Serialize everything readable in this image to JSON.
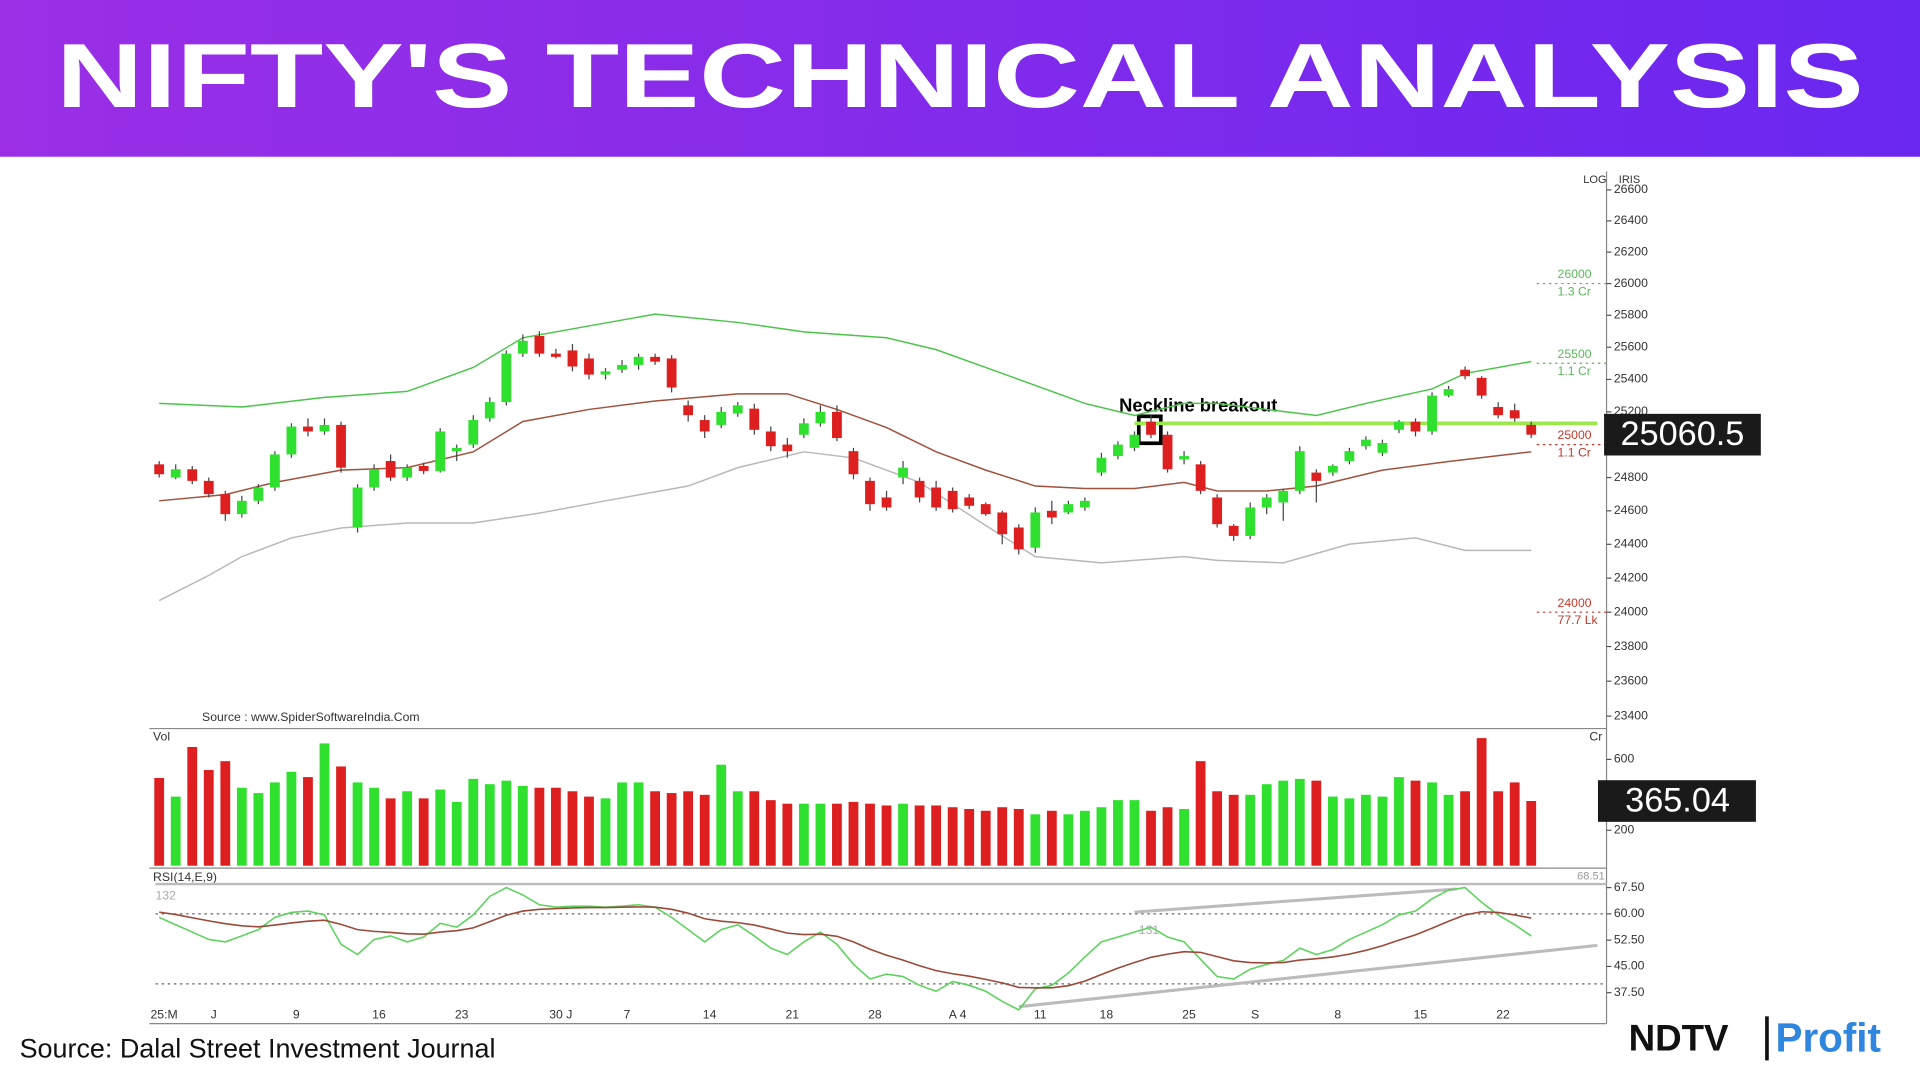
{
  "header": {
    "title": "NIFTY'S TECHNICAL ANALYSIS"
  },
  "footer": {
    "source": "Source: Dalal Street Investment Journal",
    "logo_brand": "NDTV",
    "logo_product": "Profit"
  },
  "chart_data": [
    {
      "type": "candlestick",
      "log": true,
      "scale_labels": [
        "LOG",
        "IRIS"
      ],
      "source_note": "Source : www.SpiderSoftwareIndia.Com",
      "ylim": [
        23350,
        26720
      ],
      "yticks": [
        23400,
        23600,
        23800,
        24000,
        24200,
        24400,
        24600,
        24800,
        25000,
        25200,
        25400,
        25600,
        25800,
        26000,
        26200,
        26400,
        26600
      ],
      "up_color": "#2fe02f",
      "down_color": "#dd1f1f",
      "open": [
        24880,
        24800,
        24850,
        24780,
        24700,
        24580,
        24660,
        24740,
        24940,
        25110,
        25080,
        25120,
        24500,
        24740,
        24900,
        24800,
        24870,
        24840,
        24960,
        25000,
        25160,
        25260,
        25560,
        25670,
        25560,
        25580,
        25530,
        25430,
        25460,
        25490,
        25540,
        25530,
        25240,
        25150,
        25120,
        25190,
        25220,
        25080,
        25000,
        25060,
        25130,
        25200,
        24960,
        24780,
        24680,
        24800,
        24780,
        24740,
        24720,
        24680,
        24640,
        24590,
        24500,
        24380,
        24600,
        24590,
        24620,
        24830,
        24930,
        24980,
        25140,
        25060,
        24910,
        24880,
        24680,
        24510,
        24450,
        24620,
        24650,
        24720,
        24830,
        24830,
        24900,
        24990,
        24950,
        25090,
        25140,
        25080,
        25300,
        25460,
        25410,
        25230,
        25210,
        25120
      ],
      "high": [
        24900,
        24880,
        24870,
        24800,
        24720,
        24690,
        24760,
        24960,
        25130,
        25160,
        25160,
        25140,
        24760,
        24880,
        24940,
        24880,
        24890,
        25100,
        25000,
        25180,
        25290,
        25580,
        25680,
        25700,
        25590,
        25620,
        25560,
        25470,
        25520,
        25560,
        25560,
        25550,
        25270,
        25180,
        25230,
        25260,
        25250,
        25110,
        25040,
        25160,
        25240,
        25240,
        24980,
        24800,
        24720,
        24900,
        24800,
        24780,
        24740,
        24700,
        24650,
        24600,
        24520,
        24620,
        24660,
        24660,
        24680,
        24950,
        25020,
        25080,
        25180,
        25080,
        24960,
        24900,
        24700,
        24520,
        24650,
        24700,
        24730,
        24990,
        24850,
        24880,
        24980,
        25050,
        25030,
        25150,
        25160,
        25320,
        25360,
        25480,
        25420,
        25260,
        25250,
        25140
      ],
      "low": [
        24800,
        24790,
        24760,
        24680,
        24540,
        24560,
        24640,
        24720,
        24920,
        25050,
        25060,
        24830,
        24470,
        24720,
        24780,
        24780,
        24820,
        24830,
        24900,
        24980,
        25140,
        25240,
        25540,
        25540,
        25530,
        25450,
        25400,
        25400,
        25440,
        25460,
        25490,
        25320,
        25140,
        25040,
        25100,
        25170,
        25060,
        24960,
        24920,
        25040,
        25110,
        25020,
        24790,
        24600,
        24600,
        24760,
        24650,
        24600,
        24590,
        24610,
        24570,
        24400,
        24340,
        24350,
        24520,
        24580,
        24600,
        24810,
        24910,
        24960,
        25040,
        24830,
        24880,
        24700,
        24500,
        24420,
        24430,
        24580,
        24540,
        24700,
        24650,
        24810,
        24880,
        24970,
        24930,
        25070,
        25050,
        25060,
        25290,
        25400,
        25280,
        25160,
        25140,
        25040
      ],
      "close": [
        24820,
        24850,
        24780,
        24700,
        24580,
        24660,
        24740,
        24940,
        25110,
        25080,
        25120,
        24860,
        24740,
        24850,
        24800,
        24860,
        24840,
        25080,
        24980,
        25150,
        25260,
        25560,
        25640,
        25560,
        25540,
        25480,
        25430,
        25450,
        25490,
        25540,
        25510,
        25350,
        25180,
        25080,
        25200,
        25240,
        25090,
        24990,
        24960,
        25130,
        25200,
        25040,
        24820,
        24640,
        24620,
        24860,
        24680,
        24620,
        24610,
        24630,
        24580,
        24460,
        24370,
        24590,
        24560,
        24640,
        24660,
        24920,
        25000,
        25060,
        25060,
        24850,
        24930,
        24720,
        24520,
        24450,
        24620,
        24680,
        24720,
        24960,
        24780,
        24870,
        24960,
        25030,
        25010,
        25140,
        25080,
        25300,
        25340,
        25420,
        25300,
        25180,
        25160,
        25060.5
      ],
      "overlays": [
        {
          "color": "#4cc44c",
          "x": [
            0,
            5,
            10,
            15,
            19,
            22,
            26,
            30,
            35,
            39,
            44,
            47,
            52,
            56,
            59,
            62,
            64,
            67,
            70,
            73,
            77,
            79,
            83
          ],
          "values": [
            25252,
            25230,
            25289,
            25326,
            25474,
            25659,
            25733,
            25807,
            25755,
            25696,
            25659,
            25585,
            25400,
            25252,
            25178,
            25252,
            25252,
            25215,
            25178,
            25252,
            25341,
            25437,
            25511
          ]
        },
        {
          "color": "#b8b8b8",
          "x": [
            0,
            3,
            5,
            8,
            11,
            15,
            19,
            23,
            27,
            32,
            35,
            39,
            42,
            46,
            50,
            53,
            57,
            62,
            64,
            68,
            72,
            76,
            79,
            83
          ],
          "values": [
            24068,
            24216,
            24327,
            24438,
            24497,
            24527,
            24527,
            24586,
            24660,
            24749,
            24860,
            24956,
            24919,
            24771,
            24512,
            24327,
            24290,
            24327,
            24305,
            24290,
            24401,
            24438,
            24364,
            24364
          ]
        },
        {
          "color": "#a0523d",
          "x": [
            0,
            4,
            7,
            11,
            15,
            19,
            22,
            26,
            30,
            35,
            38,
            41,
            44,
            47,
            50,
            53,
            56,
            59,
            62,
            64,
            67,
            70,
            74,
            78,
            83
          ],
          "values": [
            24660,
            24697,
            24771,
            24845,
            24860,
            24956,
            25141,
            25215,
            25267,
            25311,
            25311,
            25215,
            25104,
            24956,
            24845,
            24749,
            24734,
            24734,
            24771,
            24719,
            24719,
            24749,
            24845,
            24897,
            24956
          ]
        }
      ],
      "neckline": {
        "label": "Neckline breakout",
        "value": 25130,
        "x": [
          59,
          87
        ],
        "color": "#9be84a"
      },
      "level_labels": [
        {
          "level": 26000,
          "size": "1.3 Cr",
          "color": "#5cb85c"
        },
        {
          "level": 25500,
          "size": "1.1 Cr",
          "color": "#5cb85c"
        },
        {
          "level": 25000,
          "size": "1.1 Cr",
          "color": "#c0392b"
        },
        {
          "level": 24000,
          "size": "77.7 Lk",
          "color": "#c0392b"
        }
      ]
    },
    {
      "type": "bar",
      "axis_label": "Vol",
      "unit": "Cr",
      "ylim": [
        0,
        760
      ],
      "yticks": [
        200,
        600
      ],
      "values": [
        495,
        390,
        670,
        540,
        590,
        440,
        410,
        470,
        530,
        500,
        690,
        560,
        470,
        440,
        380,
        420,
        380,
        430,
        360,
        490,
        460,
        480,
        450,
        440,
        440,
        420,
        390,
        380,
        470,
        470,
        420,
        410,
        420,
        400,
        570,
        420,
        420,
        370,
        350,
        350,
        350,
        350,
        360,
        350,
        340,
        350,
        340,
        340,
        330,
        320,
        310,
        330,
        320,
        290,
        310,
        290,
        310,
        330,
        370,
        370,
        310,
        330,
        320,
        590,
        420,
        400,
        400,
        460,
        480,
        490,
        480,
        390,
        380,
        400,
        390,
        500,
        480,
        470,
        400,
        420,
        720,
        420,
        470,
        365.04
      ]
    },
    {
      "type": "line",
      "title": "RSI(14,E,9)",
      "top_label": 68.51,
      "notes": [
        132,
        131
      ],
      "levels": [
        60,
        40
      ],
      "ylim": [
        29,
        72
      ],
      "yticks": [
        {
          "value": 37.5,
          "label": "37.50"
        },
        {
          "value": 45,
          "label": "45.00"
        },
        {
          "value": 52.5,
          "label": "52.50"
        },
        {
          "value": 60,
          "label": "60.00"
        },
        {
          "value": 67.5,
          "label": "67.50"
        }
      ],
      "categories": [
        "25:M",
        null,
        null,
        "J",
        null,
        null,
        null,
        null,
        "9",
        null,
        null,
        null,
        null,
        "16",
        null,
        null,
        null,
        null,
        "23",
        null,
        null,
        null,
        null,
        null,
        "30 J",
        null,
        null,
        null,
        "7",
        null,
        null,
        null,
        null,
        "14",
        null,
        null,
        null,
        null,
        "21",
        null,
        null,
        null,
        null,
        "28",
        null,
        null,
        null,
        null,
        "A 4",
        null,
        null,
        null,
        null,
        "11",
        null,
        null,
        null,
        "18",
        null,
        null,
        null,
        null,
        "25",
        null,
        null,
        null,
        "S",
        null,
        null,
        null,
        null,
        "8",
        null,
        null,
        null,
        null,
        "15",
        null,
        null,
        null,
        null,
        "22",
        null,
        null
      ],
      "series": [
        {
          "color": "#5fd35f",
          "values": [
            59,
            56.9,
            54.8,
            52.7,
            52,
            53.7,
            55.5,
            59,
            60.4,
            60.8,
            59.7,
            51.3,
            48.4,
            52.7,
            53.7,
            52,
            53.4,
            57.3,
            56.2,
            59.7,
            65,
            67.5,
            65.4,
            62.6,
            61.9,
            62.2,
            62.2,
            61.9,
            62.2,
            62.6,
            61.9,
            59,
            55.5,
            52,
            55.5,
            56.9,
            53.7,
            50.2,
            48.4,
            52,
            54.8,
            51.3,
            45.6,
            41.4,
            42.8,
            42.1,
            39.6,
            37.9,
            40.7,
            39.6,
            37.9,
            35,
            32.6,
            38.6,
            39.6,
            43.1,
            47.7,
            52,
            53.4,
            54.8,
            56.2,
            53.4,
            52,
            47,
            42.1,
            41.4,
            44.2,
            45.6,
            46.7,
            50.2,
            48.4,
            49.8,
            52.7,
            54.8,
            56.9,
            59.7,
            60.8,
            64.3,
            66.8,
            67.5,
            63.3,
            59.7,
            56.9,
            53.7
          ]
        },
        {
          "color": "#9b4a3a",
          "values": [
            60.5,
            59.8,
            58.9,
            58,
            57.2,
            56.6,
            56.3,
            56.8,
            57.4,
            57.9,
            58.2,
            57,
            55.5,
            55,
            54.7,
            54.3,
            54.2,
            54.8,
            55.2,
            56,
            57.8,
            59.6,
            60.8,
            61.3,
            61.5,
            61.7,
            61.8,
            61.8,
            61.9,
            62,
            61.9,
            61.3,
            60.2,
            58.6,
            57.9,
            57.5,
            56.8,
            55.7,
            54.5,
            54.1,
            54.2,
            53.6,
            52,
            49.9,
            48.2,
            46.8,
            45.2,
            43.8,
            42.9,
            42.2,
            41.3,
            40.3,
            39,
            38.9,
            38.9,
            39.5,
            40.8,
            42.7,
            44.5,
            46.1,
            47.6,
            48.5,
            49.2,
            49,
            47.8,
            46.6,
            46.1,
            46,
            46.1,
            46.8,
            47.2,
            47.7,
            48.5,
            49.6,
            50.9,
            52.5,
            54,
            55.9,
            57.9,
            59.7,
            60.6,
            60.4,
            59.7,
            58.8
          ]
        }
      ],
      "trendlines": [
        {
          "x": [
            52,
            87
          ],
          "values": [
            33.5,
            51
          ]
        },
        {
          "x": [
            59,
            78.5
          ],
          "values": [
            60.5,
            67.1
          ]
        }
      ]
    }
  ]
}
